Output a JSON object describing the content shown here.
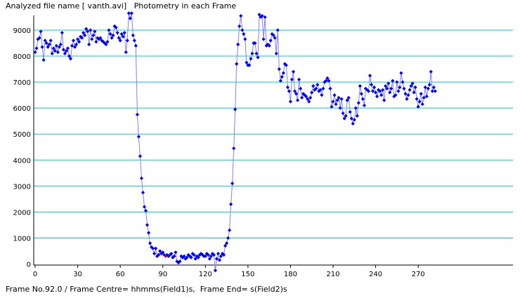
{
  "header": {
    "title": "Analyzed file name [ vanth.avi]   Photometry in each Frame"
  },
  "footer": {
    "status": "Frame No.92.0 / Frame Centre= hhmms(Field1)s,  Frame End= s(Field2)s"
  },
  "chart_data": {
    "type": "line",
    "title": "",
    "xlabel": "",
    "ylabel": "",
    "xlim": [
      0,
      300
    ],
    "ylim": [
      0,
      9500
    ],
    "x_ticks": [
      0,
      30,
      60,
      90,
      120,
      150,
      180,
      210,
      240,
      270
    ],
    "y_ticks": [
      0,
      1000,
      2000,
      3000,
      4000,
      5000,
      6000,
      7000,
      8000,
      9000
    ],
    "grid": "horizontal",
    "colors": {
      "series": "#0000ff",
      "line": "#8080ff",
      "grid": "#00cccc",
      "highlight": "#ff0000"
    },
    "highlight_frame": 92,
    "series": [
      {
        "values": [
          8150,
          8300,
          8650,
          8700,
          8950,
          8350,
          7850,
          8600,
          8500,
          8350,
          8450,
          8600,
          8100,
          8300,
          8200,
          8400,
          8150,
          8350,
          8450,
          8900,
          8250,
          8100,
          8200,
          8300,
          8000,
          7900,
          8400,
          8600,
          8350,
          8450,
          8650,
          8550,
          8750,
          8700,
          8900,
          8800,
          9050,
          8950,
          8450,
          9000,
          8650,
          8800,
          8950,
          8550,
          8700,
          8650,
          8700,
          8600,
          8550,
          8500,
          8450,
          8550,
          9000,
          8850,
          8700,
          8800,
          9150,
          9100,
          8900,
          8700,
          8600,
          8850,
          8750,
          8900,
          8150,
          8600,
          9650,
          9450,
          9650,
          8800,
          8600,
          8400,
          5750,
          4900,
          4150,
          3300,
          2750,
          2200,
          2050,
          1500,
          1200,
          800,
          650,
          600,
          400,
          600,
          300,
          350,
          500,
          400,
          450,
          350,
          300,
          350,
          300,
          350,
          400,
          250,
          300,
          450,
          100,
          50,
          100,
          300,
          250,
          300,
          200,
          250,
          350,
          300,
          250,
          400,
          350,
          200,
          300,
          250,
          350,
          400,
          350,
          300,
          300,
          400,
          350,
          200,
          300,
          400,
          350,
          -250,
          200,
          400,
          150,
          300,
          400,
          350,
          700,
          800,
          1000,
          1300,
          2300,
          3100,
          4450,
          5950,
          7700,
          8450,
          9150,
          9550,
          9000,
          8850,
          8650,
          7750,
          7650,
          7650,
          7900,
          8100,
          8500,
          8500,
          8100,
          7950,
          9600,
          9500,
          9550,
          8650,
          9500,
          8400,
          8450,
          8400,
          8600,
          8850,
          8800,
          8700,
          8100,
          9000,
          7500,
          7050,
          7200,
          7350,
          7700,
          7650,
          6800,
          6650,
          6250,
          7100,
          7400,
          6650,
          6550,
          6300,
          7100,
          6750,
          6400,
          6550,
          6500,
          6450,
          6350,
          6250,
          6400,
          6600,
          6850,
          6700,
          6750,
          6900,
          6650,
          6700,
          6500,
          6750,
          7000,
          7050,
          7150,
          7050,
          6750,
          6050,
          6250,
          6500,
          6150,
          6300,
          6400,
          6000,
          6350,
          5800,
          5600,
          5700,
          6300,
          6400,
          5850,
          5600,
          5400,
          5550,
          6000,
          5700,
          6200,
          6850,
          6550,
          6350,
          6100,
          6750,
          6700,
          6650,
          7250,
          6900,
          6650,
          6800,
          6600,
          6450,
          6700,
          6650,
          6500,
          6700,
          6300,
          6850,
          6750,
          6950,
          6600,
          6750,
          7050,
          6450,
          6500,
          7000,
          6650,
          6800,
          7350,
          7000,
          6750,
          6550,
          6350,
          6500,
          6700,
          6850,
          6950,
          6600,
          6800,
          6350,
          6050,
          6250,
          6550,
          6150,
          6400,
          6800,
          6450,
          6750,
          6900,
          7400,
          6650,
          6800,
          6650
        ]
      }
    ]
  }
}
